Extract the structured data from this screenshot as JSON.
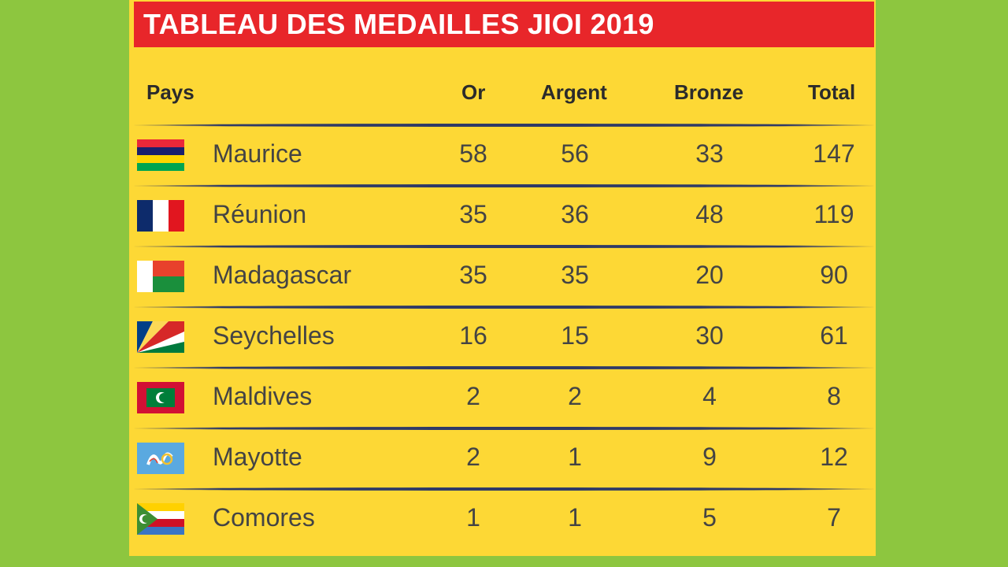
{
  "title": "TABLEAU DES MEDAILLES JIOI 2019",
  "headers": {
    "country": "Pays",
    "gold": "Or",
    "silver": "Argent",
    "bronze": "Bronze",
    "total": "Total"
  },
  "rows": [
    {
      "country": "Maurice",
      "gold": "58",
      "silver": "56",
      "bronze": "33",
      "total": "147",
      "flag": "mauritius-flag-icon"
    },
    {
      "country": "Réunion",
      "gold": "35",
      "silver": "36",
      "bronze": "48",
      "total": "119",
      "flag": "france-flag-icon"
    },
    {
      "country": "Madagascar",
      "gold": "35",
      "silver": "35",
      "bronze": "20",
      "total": "90",
      "flag": "madagascar-flag-icon"
    },
    {
      "country": "Seychelles",
      "gold": "16",
      "silver": "15",
      "bronze": "30",
      "total": "61",
      "flag": "seychelles-flag-icon"
    },
    {
      "country": "Maldives",
      "gold": "2",
      "silver": "2",
      "bronze": "4",
      "total": "8",
      "flag": "maldives-flag-icon"
    },
    {
      "country": "Mayotte",
      "gold": "2",
      "silver": "1",
      "bronze": "9",
      "total": "12",
      "flag": "mayotte-flag-icon"
    },
    {
      "country": "Comores",
      "gold": "1",
      "silver": "1",
      "bronze": "5",
      "total": "7",
      "flag": "comoros-flag-icon"
    }
  ],
  "colors": {
    "background": "#8dc63f",
    "board": "#fdd835",
    "title_bar": "#e8262a"
  }
}
